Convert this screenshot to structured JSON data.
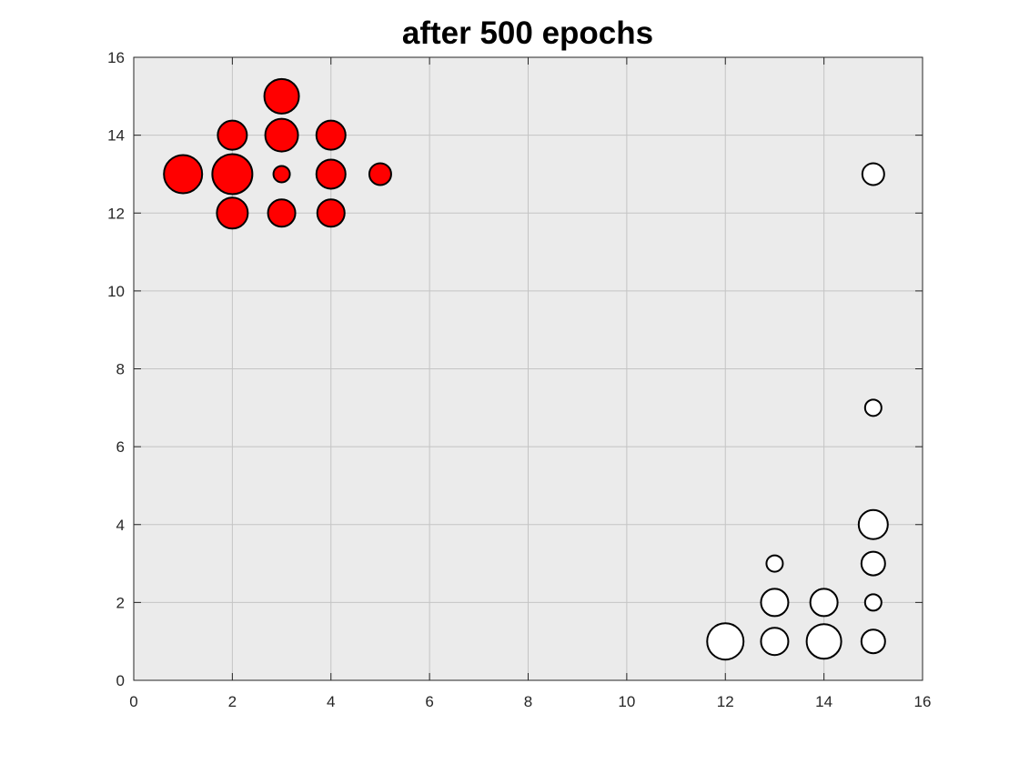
{
  "chart_data": {
    "type": "scatter",
    "title": "after 500 epochs",
    "xlabel": "",
    "ylabel": "",
    "xlim": [
      0,
      16
    ],
    "ylim": [
      0,
      16
    ],
    "xticks": [
      0,
      2,
      4,
      6,
      8,
      10,
      12,
      14,
      16
    ],
    "yticks": [
      0,
      2,
      4,
      6,
      8,
      10,
      12,
      14,
      16
    ],
    "grid": true,
    "plot_background": "#ebebeb",
    "series": [
      {
        "color": "#ff0000",
        "points": [
          {
            "x": 3,
            "y": 15,
            "r": 19
          },
          {
            "x": 2,
            "y": 14,
            "r": 16
          },
          {
            "x": 3,
            "y": 14,
            "r": 18
          },
          {
            "x": 4,
            "y": 14,
            "r": 16
          },
          {
            "x": 1,
            "y": 13,
            "r": 21
          },
          {
            "x": 2,
            "y": 13,
            "r": 22
          },
          {
            "x": 3,
            "y": 13,
            "r": 9
          },
          {
            "x": 4,
            "y": 13,
            "r": 16
          },
          {
            "x": 5,
            "y": 13,
            "r": 12
          },
          {
            "x": 2,
            "y": 12,
            "r": 17
          },
          {
            "x": 3,
            "y": 12,
            "r": 15
          },
          {
            "x": 4,
            "y": 12,
            "r": 15
          }
        ]
      },
      {
        "color": "#ffffff",
        "points": [
          {
            "x": 15,
            "y": 13,
            "r": 12
          },
          {
            "x": 15,
            "y": 7,
            "r": 9
          },
          {
            "x": 15,
            "y": 4,
            "r": 16
          },
          {
            "x": 13,
            "y": 3,
            "r": 9
          },
          {
            "x": 15,
            "y": 3,
            "r": 13
          },
          {
            "x": 13,
            "y": 2,
            "r": 15
          },
          {
            "x": 14,
            "y": 2,
            "r": 15
          },
          {
            "x": 15,
            "y": 2,
            "r": 9
          },
          {
            "x": 12,
            "y": 1,
            "r": 20
          },
          {
            "x": 13,
            "y": 1,
            "r": 15
          },
          {
            "x": 14,
            "y": 1,
            "r": 19
          },
          {
            "x": 15,
            "y": 1,
            "r": 13
          }
        ]
      }
    ]
  }
}
